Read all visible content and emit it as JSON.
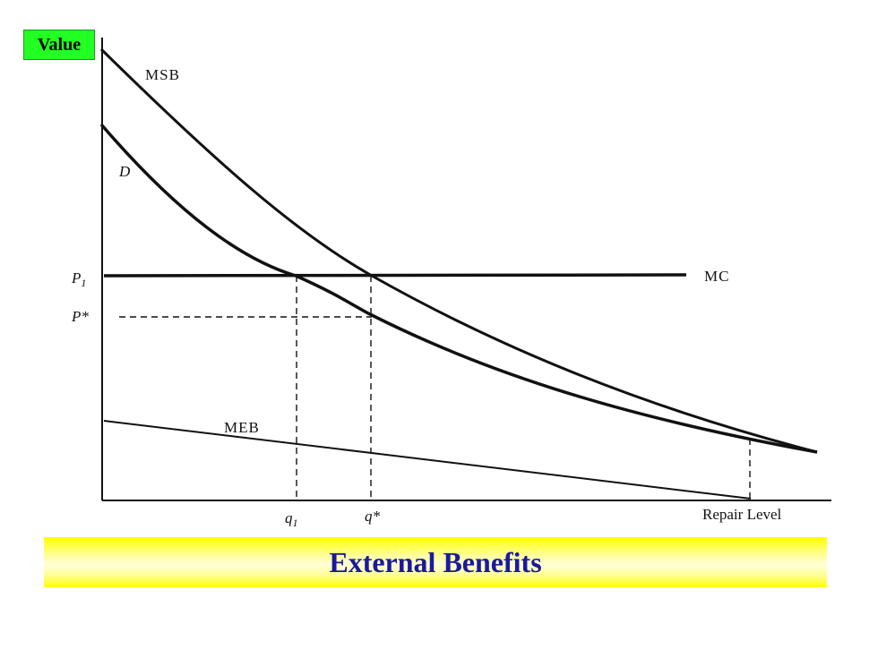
{
  "y_axis_label": "Value",
  "x_axis_label": "Repair Level",
  "title": "External Benefits",
  "curves": {
    "msb": "MSB",
    "d": "D",
    "mc": "MC",
    "meb": "MEB"
  },
  "price_labels": {
    "p1": "P",
    "p1_sub": "1",
    "pstar": "P*"
  },
  "quantity_labels": {
    "q1": "q",
    "q1_sub": "1",
    "qstar": "q*"
  },
  "colors": {
    "badge": "#22ff22",
    "banner": "#ffff00",
    "title": "#1a1a9c"
  }
}
